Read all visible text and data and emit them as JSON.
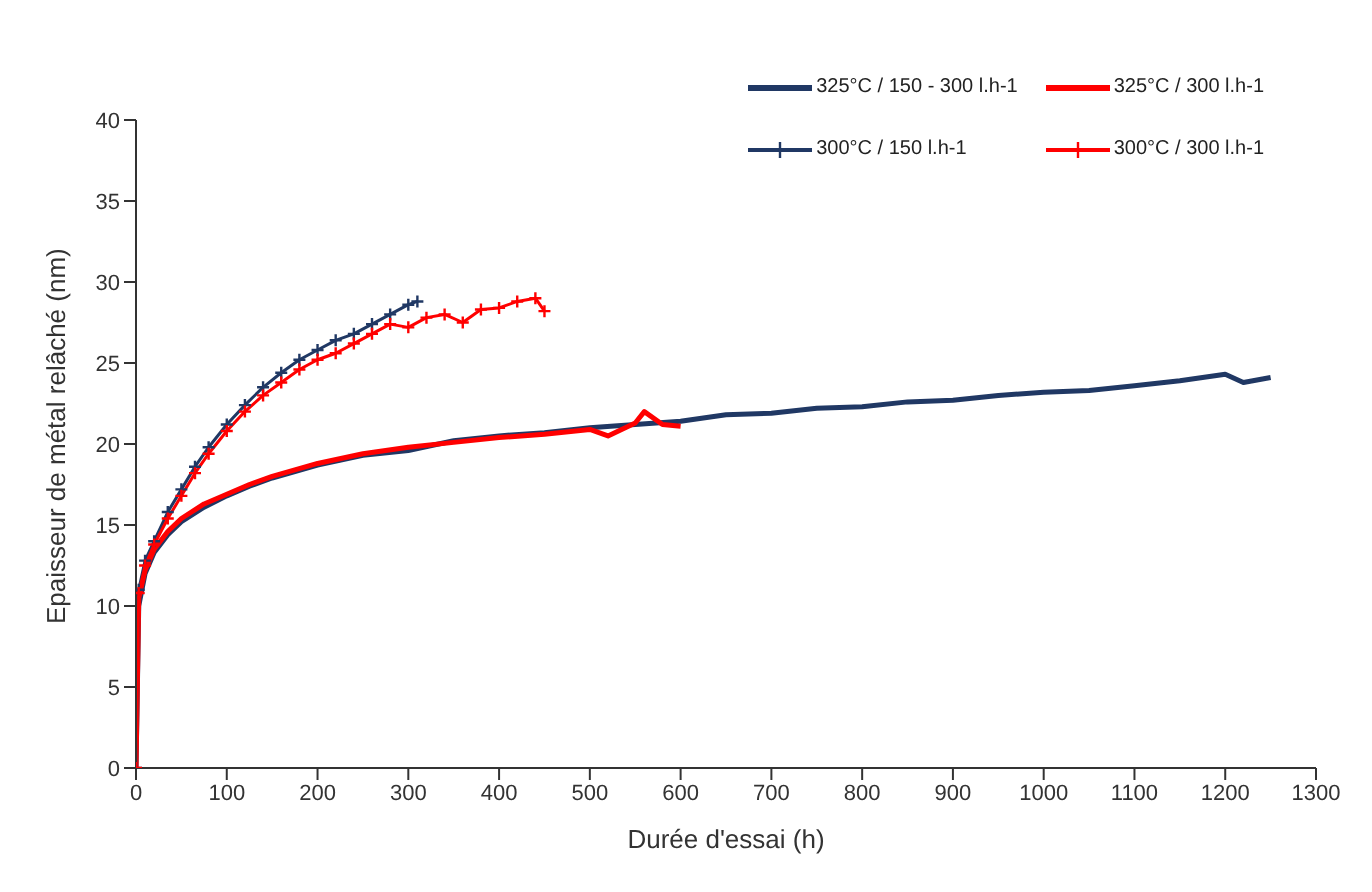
{
  "chart_data": {
    "type": "line",
    "xlabel": "Durée d'essai (h)",
    "ylabel": "Epaisseur de métal relâché (nm)",
    "xlim": [
      0,
      1300
    ],
    "xticks": [
      0,
      100,
      200,
      300,
      400,
      500,
      600,
      700,
      800,
      900,
      1000,
      1100,
      1200,
      1300
    ],
    "ylim": [
      0,
      40
    ],
    "yticks": [
      0,
      5,
      10,
      15,
      20,
      25,
      30,
      35,
      40
    ],
    "grid": false,
    "legend": "top right",
    "series": [
      {
        "name": "325°C / 150 - 300 l.h-1",
        "color": "#203864",
        "marker": "none",
        "x": [
          0,
          3,
          10,
          20,
          35,
          50,
          75,
          100,
          125,
          150,
          175,
          200,
          250,
          300,
          350,
          400,
          450,
          500,
          550,
          600,
          650,
          700,
          750,
          800,
          850,
          900,
          950,
          1000,
          1050,
          1100,
          1150,
          1200,
          1220,
          1250
        ],
        "values": [
          0,
          10,
          12,
          13.3,
          14.4,
          15.2,
          16.1,
          16.8,
          17.4,
          17.9,
          18.3,
          18.7,
          19.3,
          19.6,
          20.2,
          20.5,
          20.7,
          21,
          21.2,
          21.4,
          21.8,
          21.9,
          22.2,
          22.3,
          22.6,
          22.7,
          23,
          23.2,
          23.3,
          23.6,
          23.9,
          24.3,
          23.8,
          24.1
        ]
      },
      {
        "name": "325°C / 300 l.h-1",
        "color": "#ff0000",
        "marker": "none",
        "x": [
          0,
          3,
          10,
          20,
          35,
          50,
          75,
          100,
          125,
          150,
          175,
          200,
          250,
          300,
          350,
          400,
          450,
          500,
          520,
          550,
          560,
          580,
          600
        ],
        "values": [
          0,
          10.5,
          12.2,
          13.5,
          14.6,
          15.4,
          16.3,
          16.9,
          17.5,
          18,
          18.4,
          18.8,
          19.4,
          19.8,
          20.1,
          20.4,
          20.6,
          20.9,
          20.5,
          21.3,
          22,
          21.2,
          21.1
        ]
      },
      {
        "name": "300°C / 150 l.h-1",
        "color": "#203864",
        "marker": "cross",
        "x": [
          0,
          3,
          10,
          20,
          35,
          50,
          65,
          80,
          100,
          120,
          140,
          160,
          180,
          200,
          220,
          240,
          260,
          280,
          300,
          310
        ],
        "values": [
          0,
          11,
          12.8,
          14,
          15.8,
          17.2,
          18.6,
          19.8,
          21.2,
          22.4,
          23.5,
          24.4,
          25.2,
          25.8,
          26.4,
          26.8,
          27.4,
          28,
          28.6,
          28.8
        ]
      },
      {
        "name": "300°C / 300 l.h-1",
        "color": "#ff0000",
        "marker": "cross",
        "x": [
          0,
          3,
          10,
          20,
          35,
          50,
          65,
          80,
          100,
          120,
          140,
          160,
          180,
          200,
          220,
          240,
          260,
          280,
          300,
          320,
          340,
          360,
          380,
          400,
          420,
          440,
          450
        ],
        "values": [
          0,
          10.8,
          12.5,
          13.8,
          15.4,
          16.8,
          18.2,
          19.4,
          20.8,
          22,
          23,
          23.8,
          24.6,
          25.2,
          25.6,
          26.2,
          26.8,
          27.4,
          27.2,
          27.8,
          28,
          27.5,
          28.3,
          28.4,
          28.8,
          29,
          28.2
        ]
      }
    ]
  }
}
